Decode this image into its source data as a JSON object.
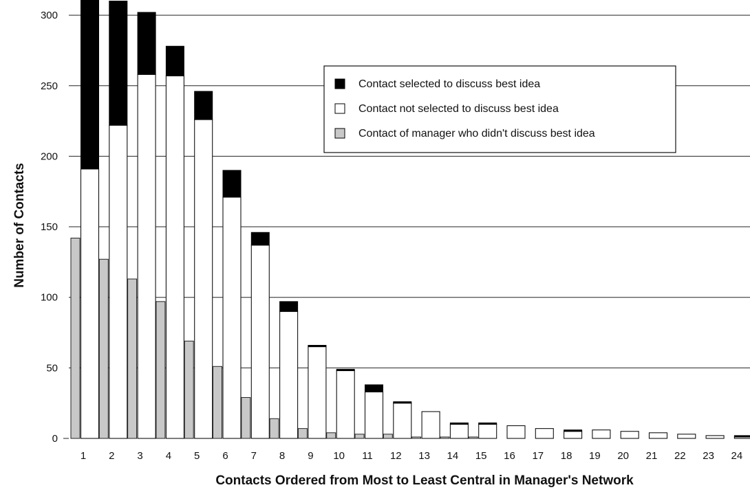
{
  "chart_data": {
    "type": "bar",
    "xlabel": "Contacts Ordered from Most to Least Central in Manager's Network",
    "ylabel": "Number of Contacts",
    "ylim": [
      0,
      305
    ],
    "yticks": [
      0,
      50,
      100,
      150,
      200,
      250,
      300
    ],
    "grid": "horizontal lines at 50, 100, 150, 200, 250, 300",
    "legend_position": "upper-right",
    "categories": [
      "1",
      "2",
      "3",
      "4",
      "5",
      "6",
      "7",
      "8",
      "9",
      "10",
      "11",
      "12",
      "13",
      "14",
      "15",
      "16",
      "17",
      "18",
      "19",
      "20",
      "21",
      "22",
      "23",
      "24"
    ],
    "series": [
      {
        "name": "Contact selected to discuss best idea",
        "color": "#000000",
        "stacked_on": "Contact not selected to discuss best idea",
        "values": [
          120,
          88,
          44,
          21,
          20,
          19,
          9,
          7,
          1,
          1,
          5,
          1,
          0,
          1,
          1,
          0,
          0,
          1,
          0,
          0,
          0,
          0,
          0,
          1
        ]
      },
      {
        "name": "Contact not selected to discuss best idea",
        "color": "#ffffff",
        "values": [
          191,
          222,
          258,
          257,
          226,
          171,
          137,
          90,
          65,
          48,
          33,
          25,
          19,
          10,
          10,
          9,
          7,
          5,
          6,
          5,
          4,
          3,
          2,
          1
        ]
      },
      {
        "name": "Contact of manager who didn't discuss best idea",
        "color": "#c8c8c8",
        "values": [
          142,
          127,
          113,
          97,
          69,
          51,
          29,
          14,
          7,
          4,
          3,
          3,
          1,
          1,
          1,
          0,
          0,
          0,
          0,
          0,
          0,
          0,
          0,
          0
        ]
      }
    ]
  }
}
